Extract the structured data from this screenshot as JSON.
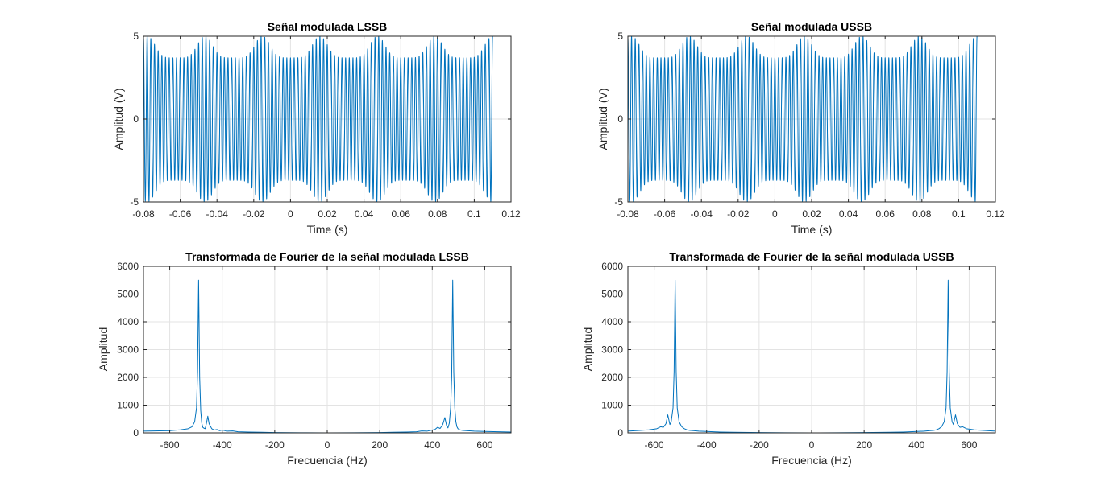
{
  "chart_data": [
    {
      "type": "line",
      "title": "Señal modulada LSSB",
      "xlabel": "Time (s)",
      "ylabel": "Amplitud (V)",
      "xlim": [
        -0.08,
        0.12
      ],
      "ylim": [
        -5,
        5
      ],
      "xticks": [
        "-0.08",
        "-0.06",
        "-0.04",
        "-0.02",
        "0",
        "0.02",
        "0.04",
        "0.06",
        "0.08",
        "0.1",
        "0.12"
      ],
      "yticks": [
        "-5",
        "0",
        "5"
      ],
      "grid": true,
      "line_color": "#0072bd",
      "signal": {
        "x_start": -0.08,
        "x_end": 0.11,
        "carrier_hz": 500,
        "envelope_period_s": 0.0313,
        "envelope_min": 3.7,
        "envelope_max": 5.0,
        "envelope_peak_at": 0.016
      }
    },
    {
      "type": "line",
      "title": "Señal modulada USSB",
      "xlabel": "Time (s)",
      "ylabel": "Amplitud (V)",
      "xlim": [
        -0.08,
        0.12
      ],
      "ylim": [
        -5,
        5
      ],
      "xticks": [
        "-0.08",
        "-0.06",
        "-0.04",
        "-0.02",
        "0",
        "0.02",
        "0.04",
        "0.06",
        "0.08",
        "0.1",
        "0.12"
      ],
      "yticks": [
        "-5",
        "0",
        "5"
      ],
      "grid": true,
      "line_color": "#0072bd",
      "signal": {
        "x_start": -0.08,
        "x_end": 0.11,
        "carrier_hz": 500,
        "envelope_period_s": 0.0313,
        "envelope_min": 3.7,
        "envelope_max": 5.0,
        "envelope_peak_at": 0.016
      }
    },
    {
      "type": "line",
      "title": "Transformada de Fourier de la señal modulada LSSB",
      "xlabel": "Frecuencia (Hz)",
      "ylabel": "Amplitud",
      "xlim": [
        -700,
        700
      ],
      "ylim": [
        0,
        6000
      ],
      "xticks": [
        "-600",
        "-400",
        "-200",
        "0",
        "200",
        "400",
        "600"
      ],
      "yticks": [
        "0",
        "1000",
        "2000",
        "3000",
        "4000",
        "5000",
        "6000"
      ],
      "grid": true,
      "line_color": "#0072bd",
      "x": [
        -700,
        -600,
        -560,
        -530,
        -515,
        -505,
        -498,
        -494,
        -490,
        -486,
        -482,
        -478,
        -474,
        -470,
        -465,
        -460,
        -455,
        -450,
        -440,
        -430,
        -420,
        -410,
        -400,
        -380,
        -360,
        -340,
        -300,
        -250,
        -200,
        -100,
        0,
        100,
        200,
        250,
        300,
        340,
        360,
        380,
        400,
        410,
        420,
        430,
        440,
        448,
        455,
        460,
        465,
        470,
        474,
        478,
        482,
        486,
        490,
        494,
        498,
        505,
        515,
        530,
        560,
        600,
        700
      ],
      "y": [
        60,
        80,
        110,
        150,
        220,
        400,
        900,
        2200,
        5500,
        2000,
        800,
        350,
        200,
        170,
        150,
        350,
        600,
        330,
        150,
        100,
        120,
        80,
        100,
        60,
        70,
        40,
        30,
        20,
        10,
        5,
        0,
        5,
        10,
        20,
        30,
        40,
        70,
        60,
        100,
        120,
        200,
        160,
        300,
        550,
        250,
        180,
        350,
        900,
        2000,
        5500,
        2200,
        900,
        400,
        220,
        150,
        110,
        90,
        80,
        60,
        50,
        30
      ]
    },
    {
      "type": "line",
      "title": "Transformada de Fourier de la señal modulada USSB",
      "xlabel": "Frecuencia (Hz)",
      "ylabel": "Amplitud",
      "xlim": [
        -700,
        700
      ],
      "ylim": [
        0,
        6000
      ],
      "xticks": [
        "-600",
        "-400",
        "-200",
        "0",
        "200",
        "400",
        "600"
      ],
      "yticks": [
        "0",
        "1000",
        "2000",
        "3000",
        "4000",
        "5000",
        "6000"
      ],
      "grid": true,
      "line_color": "#0072bd",
      "x": [
        -700,
        -620,
        -590,
        -575,
        -565,
        -555,
        -548,
        -540,
        -535,
        -528,
        -524,
        -520,
        -516,
        -512,
        -505,
        -495,
        -485,
        -475,
        -465,
        -450,
        -430,
        -400,
        -350,
        -300,
        -200,
        -100,
        0,
        100,
        200,
        300,
        350,
        400,
        430,
        450,
        465,
        475,
        485,
        495,
        505,
        512,
        516,
        520,
        524,
        528,
        535,
        540,
        548,
        555,
        565,
        575,
        590,
        620,
        700
      ],
      "y": [
        60,
        110,
        150,
        220,
        200,
        330,
        650,
        300,
        400,
        900,
        2200,
        5500,
        2200,
        900,
        400,
        220,
        150,
        110,
        90,
        80,
        60,
        50,
        30,
        20,
        10,
        5,
        0,
        5,
        10,
        20,
        30,
        50,
        60,
        80,
        90,
        110,
        150,
        220,
        400,
        900,
        2200,
        5500,
        2200,
        900,
        400,
        300,
        650,
        330,
        200,
        220,
        150,
        110,
        60
      ]
    }
  ]
}
